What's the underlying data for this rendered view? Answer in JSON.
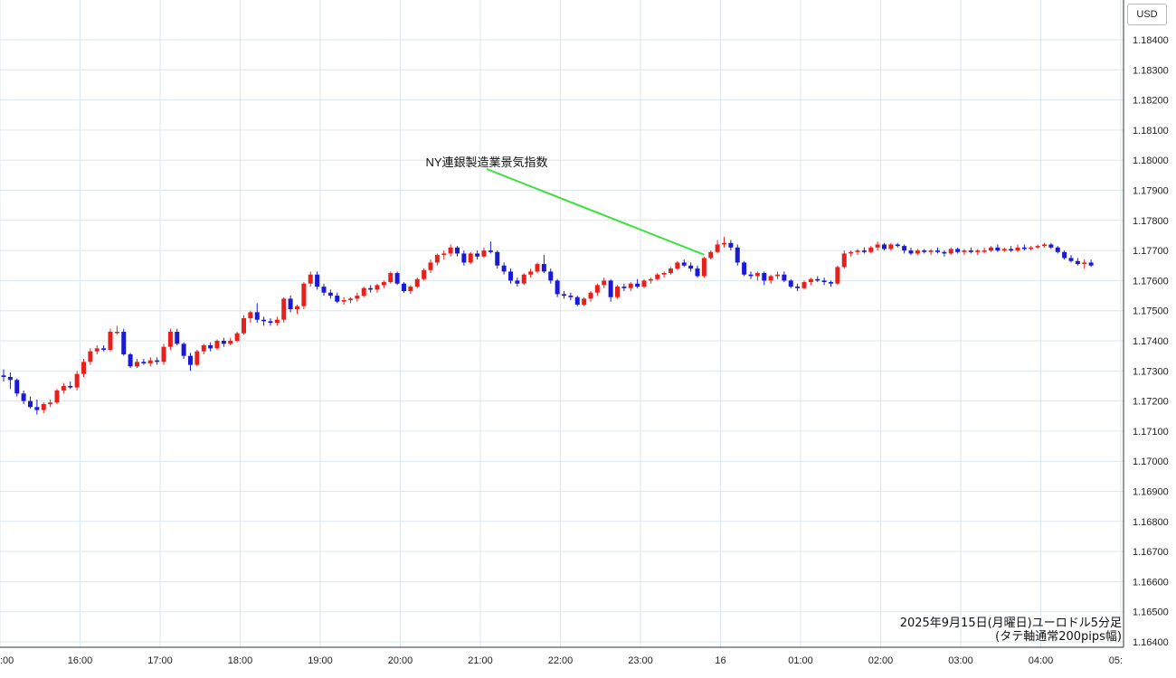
{
  "chart_data": {
    "type": "candlestick",
    "currency_label": "USD",
    "y_ticks": [
      "1.18400",
      "1.18300",
      "1.18200",
      "1.18100",
      "1.18000",
      "1.17900",
      "1.17800",
      "1.17700",
      "1.17600",
      "1.17500",
      "1.17400",
      "1.17300",
      "1.17200",
      "1.17100",
      "1.17000",
      "1.16900",
      "1.16800",
      "1.16700",
      "1.16600",
      "1.16500",
      "1.16400"
    ],
    "ylim": [
      1.1637,
      1.1849
    ],
    "x_ticks": [
      ":00",
      "16:00",
      "17:00",
      "18:00",
      "19:00",
      "20:00",
      "21:00",
      "22:00",
      "23:00",
      "16",
      "01:00",
      "02:00",
      "03:00",
      "04:00",
      "05:"
    ],
    "annotation": {
      "text": "NY連銀製造業景気指数",
      "bar_index": 105
    },
    "caption": [
      "2025年9月15日(月曜日)ユーロドル5分足",
      "(タテ軸通常200pips幅)"
    ],
    "colors": {
      "up": "#e8201c",
      "down": "#1a1ad6",
      "grid": "#dde7ee",
      "annotation_line": "#3ee03e"
    },
    "candles": [
      {
        "o": 1.17285,
        "h": 1.17305,
        "l": 1.17265,
        "c": 1.1728
      },
      {
        "o": 1.1728,
        "h": 1.17295,
        "l": 1.1724,
        "c": 1.1727
      },
      {
        "o": 1.1727,
        "h": 1.17275,
        "l": 1.17215,
        "c": 1.17225
      },
      {
        "o": 1.17225,
        "h": 1.17235,
        "l": 1.1719,
        "c": 1.172
      },
      {
        "o": 1.172,
        "h": 1.17215,
        "l": 1.17175,
        "c": 1.1718
      },
      {
        "o": 1.1718,
        "h": 1.17205,
        "l": 1.17155,
        "c": 1.1717
      },
      {
        "o": 1.1717,
        "h": 1.17195,
        "l": 1.1716,
        "c": 1.1719
      },
      {
        "o": 1.1719,
        "h": 1.17205,
        "l": 1.1718,
        "c": 1.17195
      },
      {
        "o": 1.17195,
        "h": 1.1724,
        "l": 1.1719,
        "c": 1.17235
      },
      {
        "o": 1.17235,
        "h": 1.1726,
        "l": 1.17225,
        "c": 1.1725
      },
      {
        "o": 1.1725,
        "h": 1.17265,
        "l": 1.1724,
        "c": 1.17245
      },
      {
        "o": 1.17245,
        "h": 1.173,
        "l": 1.17235,
        "c": 1.1729
      },
      {
        "o": 1.1729,
        "h": 1.1734,
        "l": 1.1728,
        "c": 1.1733
      },
      {
        "o": 1.1733,
        "h": 1.17375,
        "l": 1.1732,
        "c": 1.17365
      },
      {
        "o": 1.17365,
        "h": 1.17385,
        "l": 1.17355,
        "c": 1.17375
      },
      {
        "o": 1.17375,
        "h": 1.17385,
        "l": 1.17365,
        "c": 1.1737
      },
      {
        "o": 1.1737,
        "h": 1.1744,
        "l": 1.17365,
        "c": 1.1743
      },
      {
        "o": 1.1743,
        "h": 1.1745,
        "l": 1.1742,
        "c": 1.1743
      },
      {
        "o": 1.1743,
        "h": 1.1744,
        "l": 1.1735,
        "c": 1.17355
      },
      {
        "o": 1.17355,
        "h": 1.1736,
        "l": 1.1731,
        "c": 1.17315
      },
      {
        "o": 1.17315,
        "h": 1.1734,
        "l": 1.1731,
        "c": 1.1733
      },
      {
        "o": 1.1733,
        "h": 1.1734,
        "l": 1.1732,
        "c": 1.17325
      },
      {
        "o": 1.17325,
        "h": 1.17345,
        "l": 1.17315,
        "c": 1.17335
      },
      {
        "o": 1.17335,
        "h": 1.17345,
        "l": 1.1732,
        "c": 1.1733
      },
      {
        "o": 1.1733,
        "h": 1.1739,
        "l": 1.1732,
        "c": 1.1738
      },
      {
        "o": 1.1738,
        "h": 1.1744,
        "l": 1.1737,
        "c": 1.1743
      },
      {
        "o": 1.1743,
        "h": 1.1744,
        "l": 1.17385,
        "c": 1.1739
      },
      {
        "o": 1.1739,
        "h": 1.17395,
        "l": 1.1734,
        "c": 1.1735
      },
      {
        "o": 1.1735,
        "h": 1.1736,
        "l": 1.173,
        "c": 1.1732
      },
      {
        "o": 1.1732,
        "h": 1.1737,
        "l": 1.17315,
        "c": 1.17365
      },
      {
        "o": 1.17365,
        "h": 1.1739,
        "l": 1.17355,
        "c": 1.17385
      },
      {
        "o": 1.17385,
        "h": 1.17395,
        "l": 1.17365,
        "c": 1.17375
      },
      {
        "o": 1.17375,
        "h": 1.17405,
        "l": 1.1737,
        "c": 1.174
      },
      {
        "o": 1.174,
        "h": 1.1741,
        "l": 1.1738,
        "c": 1.1739
      },
      {
        "o": 1.1739,
        "h": 1.1741,
        "l": 1.17385,
        "c": 1.174
      },
      {
        "o": 1.174,
        "h": 1.1743,
        "l": 1.17395,
        "c": 1.17425
      },
      {
        "o": 1.17425,
        "h": 1.17485,
        "l": 1.1742,
        "c": 1.17475
      },
      {
        "o": 1.17475,
        "h": 1.175,
        "l": 1.1746,
        "c": 1.17495
      },
      {
        "o": 1.17495,
        "h": 1.17525,
        "l": 1.1746,
        "c": 1.1747
      },
      {
        "o": 1.1747,
        "h": 1.1748,
        "l": 1.1745,
        "c": 1.17465
      },
      {
        "o": 1.17465,
        "h": 1.17475,
        "l": 1.1745,
        "c": 1.1746
      },
      {
        "o": 1.1746,
        "h": 1.1748,
        "l": 1.1745,
        "c": 1.1747
      },
      {
        "o": 1.1747,
        "h": 1.17545,
        "l": 1.1746,
        "c": 1.1754
      },
      {
        "o": 1.1754,
        "h": 1.1755,
        "l": 1.17495,
        "c": 1.17505
      },
      {
        "o": 1.17505,
        "h": 1.1752,
        "l": 1.1749,
        "c": 1.17515
      },
      {
        "o": 1.17515,
        "h": 1.17595,
        "l": 1.17505,
        "c": 1.1759
      },
      {
        "o": 1.1759,
        "h": 1.1763,
        "l": 1.1758,
        "c": 1.1762
      },
      {
        "o": 1.1762,
        "h": 1.1763,
        "l": 1.1757,
        "c": 1.1758
      },
      {
        "o": 1.1758,
        "h": 1.1759,
        "l": 1.1755,
        "c": 1.1756
      },
      {
        "o": 1.1756,
        "h": 1.1757,
        "l": 1.1754,
        "c": 1.1755
      },
      {
        "o": 1.1755,
        "h": 1.1756,
        "l": 1.17525,
        "c": 1.1753
      },
      {
        "o": 1.1753,
        "h": 1.17545,
        "l": 1.1752,
        "c": 1.17535
      },
      {
        "o": 1.17535,
        "h": 1.17545,
        "l": 1.17525,
        "c": 1.1754
      },
      {
        "o": 1.1754,
        "h": 1.1756,
        "l": 1.1753,
        "c": 1.1755
      },
      {
        "o": 1.1755,
        "h": 1.1758,
        "l": 1.17545,
        "c": 1.17575
      },
      {
        "o": 1.17575,
        "h": 1.17585,
        "l": 1.1756,
        "c": 1.1757
      },
      {
        "o": 1.1757,
        "h": 1.1759,
        "l": 1.1756,
        "c": 1.17585
      },
      {
        "o": 1.17585,
        "h": 1.176,
        "l": 1.17575,
        "c": 1.17595
      },
      {
        "o": 1.17595,
        "h": 1.1763,
        "l": 1.1759,
        "c": 1.17625
      },
      {
        "o": 1.17625,
        "h": 1.1763,
        "l": 1.17585,
        "c": 1.1759
      },
      {
        "o": 1.1759,
        "h": 1.17595,
        "l": 1.1756,
        "c": 1.17565
      },
      {
        "o": 1.17565,
        "h": 1.17585,
        "l": 1.17555,
        "c": 1.1758
      },
      {
        "o": 1.1758,
        "h": 1.1761,
        "l": 1.17575,
        "c": 1.17605
      },
      {
        "o": 1.17605,
        "h": 1.1764,
        "l": 1.176,
        "c": 1.17635
      },
      {
        "o": 1.17635,
        "h": 1.1767,
        "l": 1.17625,
        "c": 1.1766
      },
      {
        "o": 1.1766,
        "h": 1.1769,
        "l": 1.1765,
        "c": 1.17685
      },
      {
        "o": 1.17685,
        "h": 1.177,
        "l": 1.1767,
        "c": 1.1769
      },
      {
        "o": 1.1769,
        "h": 1.1772,
        "l": 1.1768,
        "c": 1.1771
      },
      {
        "o": 1.1771,
        "h": 1.17715,
        "l": 1.1768,
        "c": 1.1769
      },
      {
        "o": 1.1769,
        "h": 1.177,
        "l": 1.1765,
        "c": 1.1766
      },
      {
        "o": 1.1766,
        "h": 1.17695,
        "l": 1.17655,
        "c": 1.1769
      },
      {
        "o": 1.1769,
        "h": 1.177,
        "l": 1.1767,
        "c": 1.1768
      },
      {
        "o": 1.1768,
        "h": 1.1771,
        "l": 1.17675,
        "c": 1.177
      },
      {
        "o": 1.177,
        "h": 1.1773,
        "l": 1.1769,
        "c": 1.17695
      },
      {
        "o": 1.17695,
        "h": 1.177,
        "l": 1.1764,
        "c": 1.1765
      },
      {
        "o": 1.1765,
        "h": 1.1766,
        "l": 1.1762,
        "c": 1.1763
      },
      {
        "o": 1.1763,
        "h": 1.1764,
        "l": 1.1759,
        "c": 1.176
      },
      {
        "o": 1.176,
        "h": 1.1761,
        "l": 1.1758,
        "c": 1.1759
      },
      {
        "o": 1.1759,
        "h": 1.17625,
        "l": 1.17585,
        "c": 1.1762
      },
      {
        "o": 1.1762,
        "h": 1.1764,
        "l": 1.1761,
        "c": 1.1763
      },
      {
        "o": 1.1763,
        "h": 1.1766,
        "l": 1.17625,
        "c": 1.17655
      },
      {
        "o": 1.17655,
        "h": 1.17685,
        "l": 1.17625,
        "c": 1.1763
      },
      {
        "o": 1.1763,
        "h": 1.1764,
        "l": 1.1759,
        "c": 1.176
      },
      {
        "o": 1.176,
        "h": 1.17605,
        "l": 1.17545,
        "c": 1.17555
      },
      {
        "o": 1.17555,
        "h": 1.17565,
        "l": 1.1754,
        "c": 1.1755
      },
      {
        "o": 1.1755,
        "h": 1.1756,
        "l": 1.17535,
        "c": 1.17545
      },
      {
        "o": 1.17545,
        "h": 1.1755,
        "l": 1.17515,
        "c": 1.1752
      },
      {
        "o": 1.1752,
        "h": 1.17545,
        "l": 1.17515,
        "c": 1.1754
      },
      {
        "o": 1.1754,
        "h": 1.17565,
        "l": 1.1753,
        "c": 1.1756
      },
      {
        "o": 1.1756,
        "h": 1.1759,
        "l": 1.1755,
        "c": 1.17585
      },
      {
        "o": 1.17585,
        "h": 1.1761,
        "l": 1.17575,
        "c": 1.176
      },
      {
        "o": 1.176,
        "h": 1.17605,
        "l": 1.1753,
        "c": 1.17545
      },
      {
        "o": 1.17545,
        "h": 1.17585,
        "l": 1.1754,
        "c": 1.1758
      },
      {
        "o": 1.1758,
        "h": 1.1759,
        "l": 1.17565,
        "c": 1.17575
      },
      {
        "o": 1.17575,
        "h": 1.17595,
        "l": 1.17565,
        "c": 1.1759
      },
      {
        "o": 1.1759,
        "h": 1.17605,
        "l": 1.17575,
        "c": 1.1758
      },
      {
        "o": 1.1758,
        "h": 1.17605,
        "l": 1.17575,
        "c": 1.176
      },
      {
        "o": 1.176,
        "h": 1.1761,
        "l": 1.1759,
        "c": 1.17605
      },
      {
        "o": 1.17605,
        "h": 1.17625,
        "l": 1.176,
        "c": 1.1762
      },
      {
        "o": 1.1762,
        "h": 1.1763,
        "l": 1.1761,
        "c": 1.17625
      },
      {
        "o": 1.17625,
        "h": 1.17645,
        "l": 1.1762,
        "c": 1.1764
      },
      {
        "o": 1.1764,
        "h": 1.17665,
        "l": 1.17635,
        "c": 1.1766
      },
      {
        "o": 1.1766,
        "h": 1.1767,
        "l": 1.17645,
        "c": 1.1765
      },
      {
        "o": 1.1765,
        "h": 1.1766,
        "l": 1.1763,
        "c": 1.1764
      },
      {
        "o": 1.1764,
        "h": 1.1765,
        "l": 1.1761,
        "c": 1.17615
      },
      {
        "o": 1.17615,
        "h": 1.1768,
        "l": 1.1761,
        "c": 1.17675
      },
      {
        "o": 1.17675,
        "h": 1.177,
        "l": 1.1767,
        "c": 1.17695
      },
      {
        "o": 1.17695,
        "h": 1.17735,
        "l": 1.1769,
        "c": 1.1772
      },
      {
        "o": 1.1772,
        "h": 1.17745,
        "l": 1.1771,
        "c": 1.17725
      },
      {
        "o": 1.17725,
        "h": 1.17735,
        "l": 1.177,
        "c": 1.1771
      },
      {
        "o": 1.1771,
        "h": 1.1772,
        "l": 1.1765,
        "c": 1.1766
      },
      {
        "o": 1.1766,
        "h": 1.17665,
        "l": 1.17615,
        "c": 1.1762
      },
      {
        "o": 1.1762,
        "h": 1.1763,
        "l": 1.17605,
        "c": 1.17615
      },
      {
        "o": 1.17615,
        "h": 1.1763,
        "l": 1.176,
        "c": 1.17625
      },
      {
        "o": 1.17625,
        "h": 1.1763,
        "l": 1.17585,
        "c": 1.176
      },
      {
        "o": 1.176,
        "h": 1.1762,
        "l": 1.1759,
        "c": 1.17615
      },
      {
        "o": 1.17615,
        "h": 1.1763,
        "l": 1.17605,
        "c": 1.1762
      },
      {
        "o": 1.1762,
        "h": 1.1763,
        "l": 1.17595,
        "c": 1.176
      },
      {
        "o": 1.176,
        "h": 1.17605,
        "l": 1.17575,
        "c": 1.1758
      },
      {
        "o": 1.1758,
        "h": 1.1759,
        "l": 1.17565,
        "c": 1.17575
      },
      {
        "o": 1.17575,
        "h": 1.176,
        "l": 1.1757,
        "c": 1.17595
      },
      {
        "o": 1.17595,
        "h": 1.1761,
        "l": 1.17585,
        "c": 1.17605
      },
      {
        "o": 1.17605,
        "h": 1.17615,
        "l": 1.17595,
        "c": 1.176
      },
      {
        "o": 1.176,
        "h": 1.1761,
        "l": 1.17585,
        "c": 1.17595
      },
      {
        "o": 1.17595,
        "h": 1.176,
        "l": 1.1758,
        "c": 1.1759
      },
      {
        "o": 1.1759,
        "h": 1.1765,
        "l": 1.17585,
        "c": 1.17645
      },
      {
        "o": 1.17645,
        "h": 1.177,
        "l": 1.1764,
        "c": 1.1769
      },
      {
        "o": 1.1769,
        "h": 1.177,
        "l": 1.1768,
        "c": 1.17695
      },
      {
        "o": 1.17695,
        "h": 1.17705,
        "l": 1.17685,
        "c": 1.177
      },
      {
        "o": 1.177,
        "h": 1.1771,
        "l": 1.1769,
        "c": 1.17695
      },
      {
        "o": 1.17695,
        "h": 1.17715,
        "l": 1.1769,
        "c": 1.1771
      },
      {
        "o": 1.1771,
        "h": 1.1773,
        "l": 1.177,
        "c": 1.1772
      },
      {
        "o": 1.1772,
        "h": 1.17725,
        "l": 1.177,
        "c": 1.17705
      },
      {
        "o": 1.17705,
        "h": 1.17725,
        "l": 1.177,
        "c": 1.1772
      },
      {
        "o": 1.1772,
        "h": 1.17725,
        "l": 1.1771,
        "c": 1.17715
      },
      {
        "o": 1.17715,
        "h": 1.1772,
        "l": 1.1769,
        "c": 1.177
      },
      {
        "o": 1.177,
        "h": 1.1771,
        "l": 1.17685,
        "c": 1.1769
      },
      {
        "o": 1.1769,
        "h": 1.17705,
        "l": 1.17685,
        "c": 1.177
      },
      {
        "o": 1.177,
        "h": 1.17705,
        "l": 1.1769,
        "c": 1.17695
      },
      {
        "o": 1.17695,
        "h": 1.17705,
        "l": 1.17685,
        "c": 1.177
      },
      {
        "o": 1.177,
        "h": 1.1771,
        "l": 1.1769,
        "c": 1.17695
      },
      {
        "o": 1.17695,
        "h": 1.177,
        "l": 1.1768,
        "c": 1.1769
      },
      {
        "o": 1.1769,
        "h": 1.1771,
        "l": 1.17685,
        "c": 1.17705
      },
      {
        "o": 1.17705,
        "h": 1.1771,
        "l": 1.1769,
        "c": 1.17695
      },
      {
        "o": 1.17695,
        "h": 1.17705,
        "l": 1.17685,
        "c": 1.177
      },
      {
        "o": 1.177,
        "h": 1.1771,
        "l": 1.1769,
        "c": 1.17695
      },
      {
        "o": 1.17695,
        "h": 1.17705,
        "l": 1.17685,
        "c": 1.177
      },
      {
        "o": 1.177,
        "h": 1.1771,
        "l": 1.1769,
        "c": 1.177
      },
      {
        "o": 1.177,
        "h": 1.17715,
        "l": 1.17695,
        "c": 1.1771
      },
      {
        "o": 1.1771,
        "h": 1.1772,
        "l": 1.17695,
        "c": 1.177
      },
      {
        "o": 1.177,
        "h": 1.1771,
        "l": 1.17695,
        "c": 1.17705
      },
      {
        "o": 1.17705,
        "h": 1.17715,
        "l": 1.17695,
        "c": 1.177
      },
      {
        "o": 1.177,
        "h": 1.1772,
        "l": 1.17695,
        "c": 1.1771
      },
      {
        "o": 1.1771,
        "h": 1.1772,
        "l": 1.177,
        "c": 1.17705
      },
      {
        "o": 1.17705,
        "h": 1.17715,
        "l": 1.177,
        "c": 1.1771
      },
      {
        "o": 1.1771,
        "h": 1.1772,
        "l": 1.17705,
        "c": 1.17715
      },
      {
        "o": 1.17715,
        "h": 1.17725,
        "l": 1.1771,
        "c": 1.1772
      },
      {
        "o": 1.1772,
        "h": 1.17725,
        "l": 1.17705,
        "c": 1.1771
      },
      {
        "o": 1.1771,
        "h": 1.17715,
        "l": 1.1769,
        "c": 1.17695
      },
      {
        "o": 1.17695,
        "h": 1.177,
        "l": 1.1767,
        "c": 1.17675
      },
      {
        "o": 1.17675,
        "h": 1.17685,
        "l": 1.1766,
        "c": 1.17665
      },
      {
        "o": 1.17665,
        "h": 1.17675,
        "l": 1.1765,
        "c": 1.17655
      },
      {
        "o": 1.17655,
        "h": 1.1767,
        "l": 1.1764,
        "c": 1.1766
      },
      {
        "o": 1.1766,
        "h": 1.1767,
        "l": 1.17645,
        "c": 1.1765
      }
    ]
  }
}
